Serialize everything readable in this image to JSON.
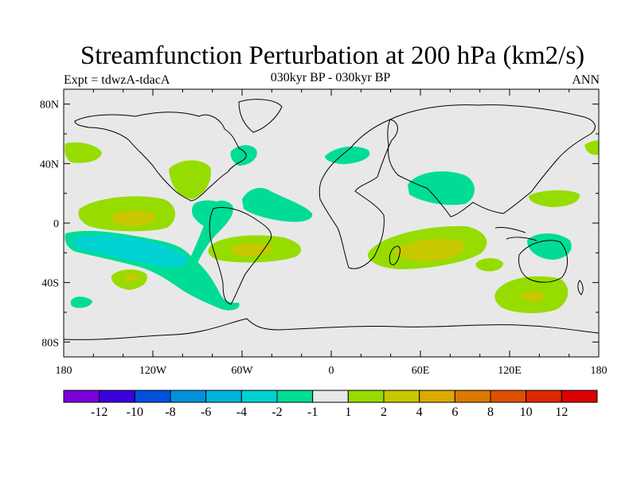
{
  "title": "Streamfunction Perturbation at 200 hPa (km2/s)",
  "left_label": "Expt = tdwzA-tdacA",
  "center_label": "030kyr BP - 030kyr BP",
  "right_label": "ANN",
  "colors": {
    "ocean": "#e8e8e8",
    "neg1": "#00dc96",
    "neg2": "#00d2d2",
    "neg3": "#00b4dc",
    "pos1": "#96dc00",
    "pos2": "#c8c800"
  },
  "map": {
    "lon_range": [
      -180,
      180
    ],
    "lat_range": [
      -90,
      90
    ],
    "x_ticks": [
      {
        "lon": -180,
        "label": "180"
      },
      {
        "lon": -120,
        "label": "120W"
      },
      {
        "lon": -60,
        "label": "60W"
      },
      {
        "lon": 0,
        "label": "0"
      },
      {
        "lon": 60,
        "label": "60E"
      },
      {
        "lon": 120,
        "label": "120E"
      },
      {
        "lon": 180,
        "label": "180"
      }
    ],
    "y_ticks": [
      {
        "lat": 80,
        "label": "80N"
      },
      {
        "lat": 40,
        "label": "40N"
      },
      {
        "lat": 0,
        "label": "0"
      },
      {
        "lat": -40,
        "label": "40S"
      },
      {
        "lat": -80,
        "label": "80S"
      }
    ]
  },
  "colorbar": {
    "colors": [
      "#7d00dc",
      "#3c00dc",
      "#0050dc",
      "#0090dc",
      "#00b4dc",
      "#00d2d2",
      "#00dc96",
      "#e8e8e8",
      "#96dc00",
      "#c8c800",
      "#dcaa00",
      "#dc7800",
      "#dc5000",
      "#dc2800",
      "#dc0000"
    ],
    "labels": [
      "-12",
      "-10",
      "-8",
      "-6",
      "-4",
      "-2",
      "-1",
      "1",
      "2",
      "4",
      "6",
      "8",
      "10",
      "12"
    ]
  }
}
